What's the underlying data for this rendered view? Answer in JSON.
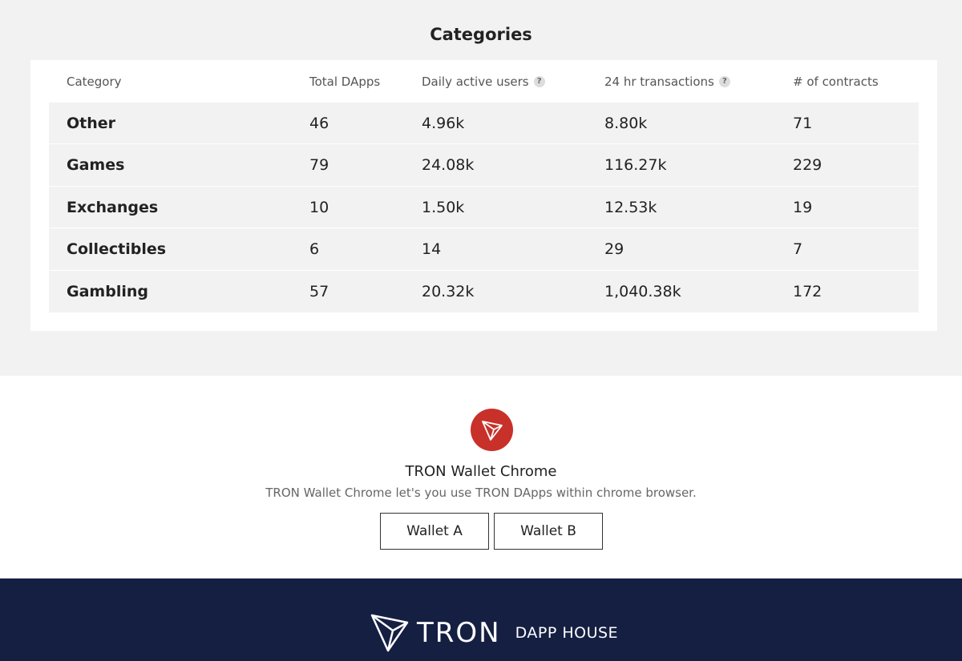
{
  "categories": {
    "title": "Categories",
    "columns": [
      "Category",
      "Total DApps",
      "Daily active users",
      "24 hr transactions",
      "# of contracts"
    ],
    "help_icon": "?",
    "rows": [
      {
        "name": "Other",
        "total": "46",
        "dau": "4.96k",
        "tx": "8.80k",
        "contracts": "71"
      },
      {
        "name": "Games",
        "total": "79",
        "dau": "24.08k",
        "tx": "116.27k",
        "contracts": "229"
      },
      {
        "name": "Exchanges",
        "total": "10",
        "dau": "1.50k",
        "tx": "12.53k",
        "contracts": "19"
      },
      {
        "name": "Collectibles",
        "total": "6",
        "dau": "14",
        "tx": "29",
        "contracts": "7"
      },
      {
        "name": "Gambling",
        "total": "57",
        "dau": "20.32k",
        "tx": "1,040.38k",
        "contracts": "172"
      }
    ]
  },
  "wallet": {
    "logo_icon": "tron-logo-icon",
    "title": "TRON Wallet Chrome",
    "description": "TRON Wallet Chrome let's you use TRON DApps within chrome browser.",
    "button_a": "Wallet A",
    "button_b": "Wallet B"
  },
  "footer": {
    "brand": "TRON",
    "tagline": "DAPP HOUSE"
  },
  "colors": {
    "tron_red": "#c8312a",
    "footer_navy": "#151f42"
  }
}
